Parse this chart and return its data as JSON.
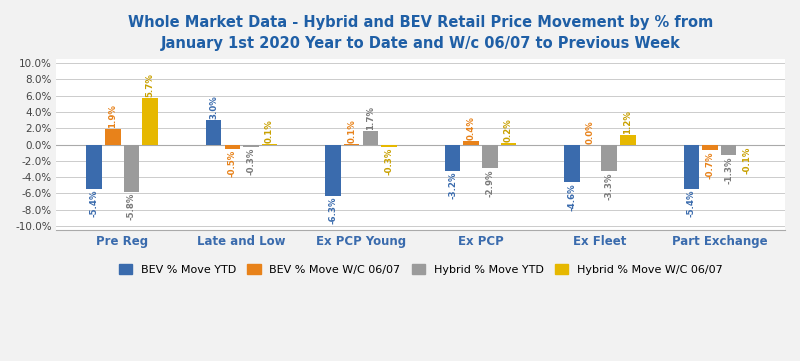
{
  "title": "Whole Market Data - Hybrid and BEV Retail Price Movement by % from\nJanuary 1st 2020 Year to Date and W/c 06/07 to Previous Week",
  "categories": [
    "Pre Reg",
    "Late and Low",
    "Ex PCP Young",
    "Ex PCP",
    "Ex Fleet",
    "Part Exchange"
  ],
  "series_names": [
    "BEV % Move YTD",
    "BEV % Move W/C 06/07",
    "Hybrid % Move YTD",
    "Hybrid % Move W/C 06/07"
  ],
  "series": {
    "BEV % Move YTD": [
      -5.4,
      3.0,
      -6.3,
      -3.2,
      -4.6,
      -5.4
    ],
    "BEV % Move W/C 06/07": [
      1.9,
      -0.5,
      0.1,
      0.4,
      0.0,
      -0.7
    ],
    "Hybrid % Move YTD": [
      -5.8,
      -0.3,
      1.7,
      -2.9,
      -3.3,
      -1.3
    ],
    "Hybrid % Move W/C 06/07": [
      5.7,
      0.1,
      -0.3,
      0.2,
      1.2,
      -0.1
    ]
  },
  "colors": {
    "BEV % Move YTD": "#3A6BAD",
    "BEV % Move W/C 06/07": "#E8821A",
    "Hybrid % Move YTD": "#9B9B9B",
    "Hybrid % Move W/C 06/07": "#E6B800"
  },
  "label_colors": {
    "BEV % Move YTD": "#3A6BAD",
    "BEV % Move W/C 06/07": "#E8821A",
    "Hybrid % Move YTD": "#7A7A7A",
    "Hybrid % Move W/C 06/07": "#C8A000"
  },
  "ylim": [
    -10.5,
    10.5
  ],
  "ytick_vals": [
    -10,
    -8,
    -6,
    -4,
    -2,
    0,
    2,
    4,
    6,
    8,
    10
  ],
  "background_color": "#F2F2F2",
  "plot_bg_color": "#FFFFFF",
  "title_color": "#1F5FA6",
  "title_fontsize": 10.5,
  "xtick_color": "#3A6BAD",
  "bar_width": 0.13,
  "label_fontsize": 6.2,
  "legend_fontsize": 8.0
}
